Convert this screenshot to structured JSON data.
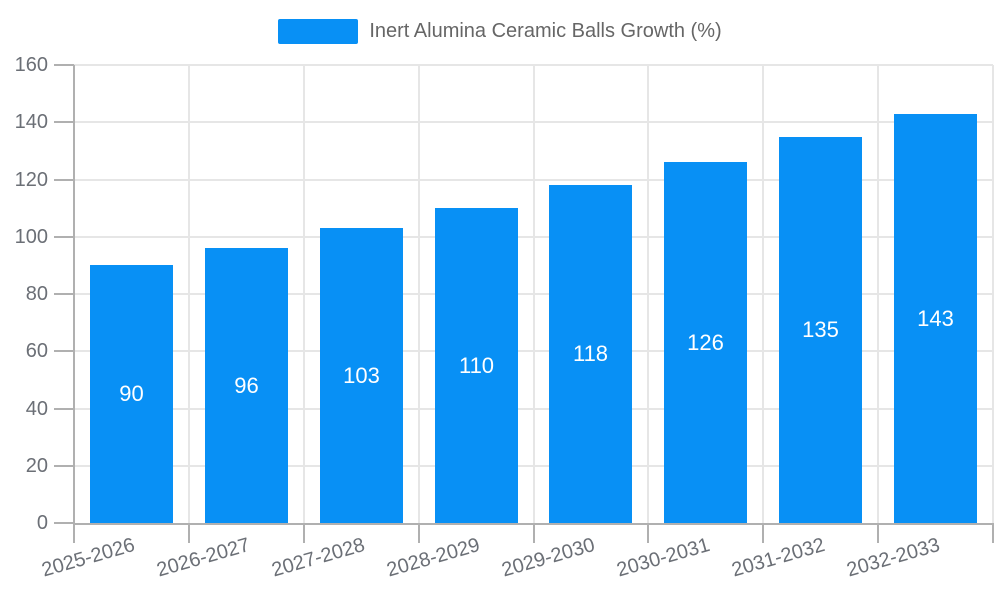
{
  "chart_data": {
    "type": "bar",
    "title": "Inert Alumina Ceramic Balls Growth (%)",
    "legend_position": "top",
    "categories": [
      "2025-2026",
      "2026-2027",
      "2027-2028",
      "2028-2029",
      "2029-2030",
      "2030-2031",
      "2031-2032",
      "2032-2033"
    ],
    "series": [
      {
        "name": "Inert Alumina Ceramic Balls Growth (%)",
        "values": [
          90,
          96,
          103,
          110,
          118,
          126,
          135,
          143
        ]
      }
    ],
    "xlabel": "",
    "ylabel": "",
    "ylim": [
      0,
      160
    ],
    "yticks": [
      0,
      20,
      40,
      60,
      80,
      100,
      120,
      140,
      160
    ],
    "grid": true,
    "x_label_rotation_deg": -16,
    "data_labels_shown": true,
    "colors": {
      "bar": "#0890f5",
      "grid": "#e6e6e6",
      "axis": "#b0b0b0",
      "tick_label": "#6b6f76",
      "legend_text": "#666666",
      "data_label": "#ffffff",
      "background": "#ffffff"
    }
  }
}
